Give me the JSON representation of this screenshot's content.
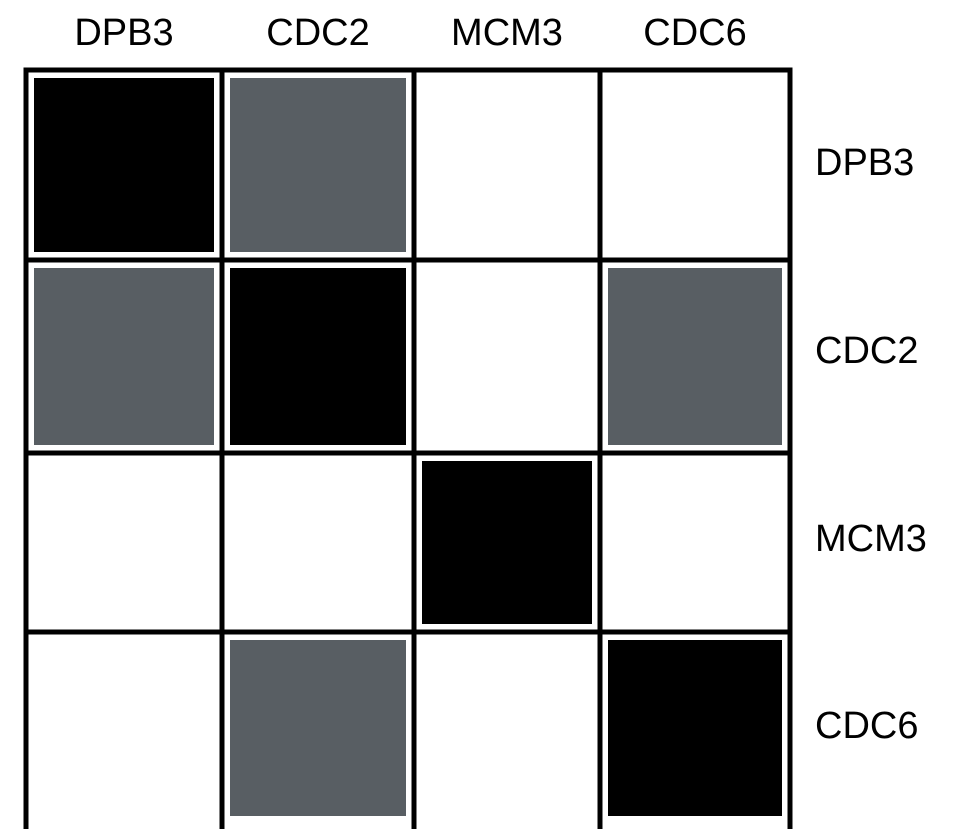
{
  "chart_data": {
    "type": "heatmap",
    "title": "",
    "column_labels": [
      "DPB3",
      "CDC2",
      "MCM3",
      "CDC6"
    ],
    "row_labels": [
      "DPB3",
      "CDC2",
      "MCM3",
      "CDC6"
    ],
    "matrix": [
      [
        2,
        1,
        0,
        0
      ],
      [
        1,
        2,
        0,
        1
      ],
      [
        0,
        0,
        2,
        0
      ],
      [
        0,
        1,
        0,
        2
      ]
    ],
    "level_colors": [
      "#ffffff",
      "#585e63",
      "#000000"
    ],
    "grid": true,
    "grid_color": "#000000",
    "background": "#ffffff"
  }
}
